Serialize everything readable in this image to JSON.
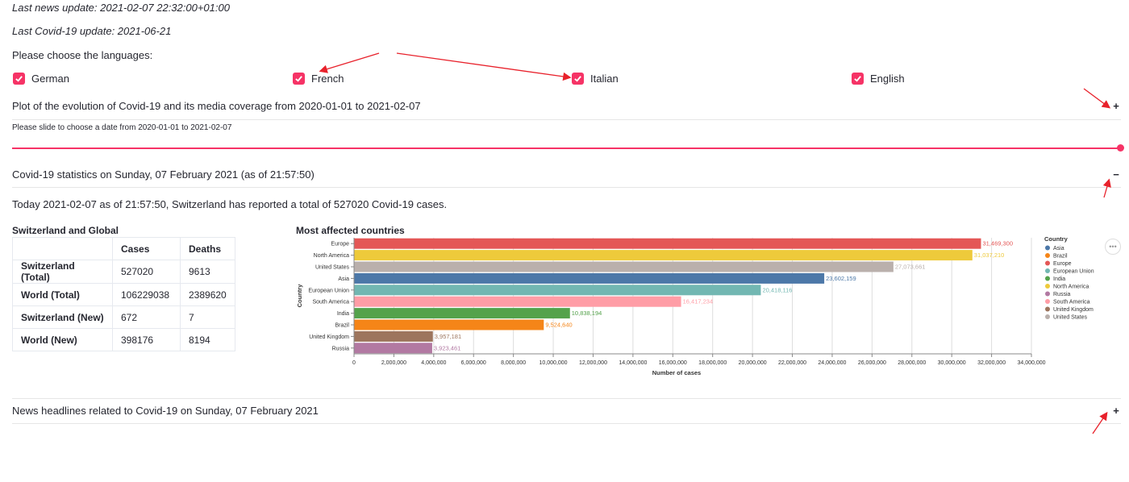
{
  "header": {
    "news_update": "Last news update: 2021-02-07 22:32:00+01:00",
    "covid_update": "Last Covid-19 update: 2021-06-21",
    "choose_languages": "Please choose the languages:"
  },
  "languages": [
    {
      "label": "German",
      "checked": true
    },
    {
      "label": "French",
      "checked": true
    },
    {
      "label": "Italian",
      "checked": true
    },
    {
      "label": "English",
      "checked": true
    }
  ],
  "plot_expander": {
    "title": "Plot of the evolution of Covid-19 and its media coverage from 2020-01-01 to 2021-02-07",
    "toggle": "+",
    "slider_label": "Please slide to choose a date from 2020-01-01 to 2021-02-07",
    "slider_value": 1.0
  },
  "stats_expander": {
    "title": "Covid-19 statistics on Sunday, 07 February 2021 (as of 21:57:50)",
    "toggle": "−",
    "summary": "Today 2021-02-07 as of 21:57:50, Switzerland has reported a total of 527020 Covid-19 cases.",
    "table_title": "Switzerland and Global",
    "table": {
      "columns": [
        "Cases",
        "Deaths"
      ],
      "rows": [
        {
          "label": "Switzerland (Total)",
          "cases": "527020",
          "deaths": "9613"
        },
        {
          "label": "World (Total)",
          "cases": "106229038",
          "deaths": "2389620"
        },
        {
          "label": "Switzerland (New)",
          "cases": "672",
          "deaths": "7"
        },
        {
          "label": "World (New)",
          "cases": "398176",
          "deaths": "8194"
        }
      ]
    },
    "chart_title": "Most affected countries",
    "more_icon": "ellipsis-icon"
  },
  "news_expander": {
    "title": "News headlines related to Covid-19 on Sunday, 07 February 2021",
    "toggle": "+"
  },
  "chart_data": {
    "type": "bar",
    "orientation": "horizontal",
    "title": "Most affected countries",
    "xlabel": "Number of cases",
    "ylabel": "Country",
    "xlim": [
      0,
      34000000
    ],
    "xticks": [
      0,
      2000000,
      4000000,
      6000000,
      8000000,
      10000000,
      12000000,
      14000000,
      16000000,
      18000000,
      20000000,
      22000000,
      24000000,
      26000000,
      28000000,
      30000000,
      32000000,
      34000000
    ],
    "xtick_labels": [
      "0",
      "2,000,000",
      "4,000,000",
      "6,000,000",
      "8,000,000",
      "10,000,000",
      "12,000,000",
      "14,000,000",
      "16,000,000",
      "18,000,000",
      "20,000,000",
      "22,000,000",
      "24,000,000",
      "26,000,000",
      "28,000,000",
      "30,000,000",
      "32,000,000",
      "34,000,000"
    ],
    "grid": true,
    "legend_title": "Country",
    "legend_position": "right",
    "categories": [
      "Europe",
      "North America",
      "United States",
      "Asia",
      "European Union",
      "South America",
      "India",
      "Brazil",
      "United Kingdom",
      "Russia"
    ],
    "values": [
      31469300,
      31037210,
      27073661,
      23602159,
      20418116,
      16417234,
      10838194,
      9524640,
      3957181,
      3923461
    ],
    "value_labels": [
      "31,469,300",
      "31,037,210",
      "27,073,661",
      "23,602,159",
      "20,418,116",
      "16,417,234",
      "10,838,194",
      "9,524,640",
      "3,957,181",
      "3,923,461"
    ],
    "colors": [
      "#e45756",
      "#eeca3b",
      "#bab0ac",
      "#4c78a8",
      "#72b7b2",
      "#ff9da6",
      "#54a24b",
      "#f58518",
      "#9d755d",
      "#b279a2"
    ],
    "legend": [
      {
        "name": "Asia",
        "color": "#4c78a8"
      },
      {
        "name": "Brazil",
        "color": "#f58518"
      },
      {
        "name": "Europe",
        "color": "#e45756"
      },
      {
        "name": "European Union",
        "color": "#72b7b2"
      },
      {
        "name": "India",
        "color": "#54a24b"
      },
      {
        "name": "North America",
        "color": "#eeca3b"
      },
      {
        "name": "Russia",
        "color": "#b279a2"
      },
      {
        "name": "South America",
        "color": "#ff9da6"
      },
      {
        "name": "United Kingdom",
        "color": "#9d755d"
      },
      {
        "name": "United States",
        "color": "#bab0ac"
      }
    ]
  },
  "annotation_color": "#e8212b"
}
